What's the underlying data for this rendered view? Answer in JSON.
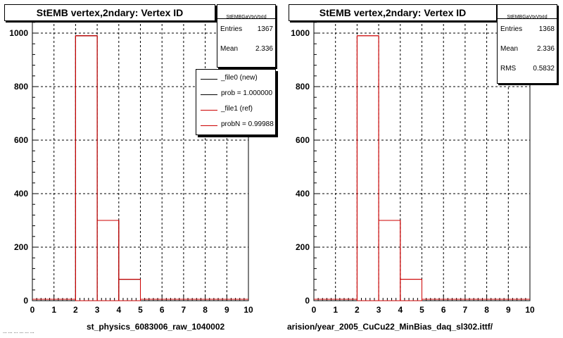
{
  "chart_data": [
    {
      "type": "bar",
      "title": "StEMB  vertex,2ndary: Vertex ID",
      "xlabel": "st_physics_6083006_raw_1040002",
      "xlim": [
        0,
        10
      ],
      "ylim": [
        0,
        1050
      ],
      "xticks": [
        "0",
        "1",
        "2",
        "3",
        "4",
        "5",
        "6",
        "7",
        "8",
        "9",
        "10"
      ],
      "yticks": [
        "0",
        "200",
        "400",
        "600",
        "800",
        "1000"
      ],
      "grid": true,
      "bin_edges": [
        0,
        1,
        2,
        3,
        4,
        5,
        6,
        7,
        8,
        9,
        10
      ],
      "series": [
        {
          "name": "_file0 (new)",
          "color": "#000000",
          "values": [
            0,
            0,
            990,
            300,
            80,
            0,
            0,
            0,
            0,
            0
          ]
        },
        {
          "name": "_file1 (ref)",
          "color": "#cc0000",
          "values": [
            0,
            0,
            990,
            300,
            80,
            0,
            0,
            0,
            0,
            0
          ]
        }
      ],
      "stats": {
        "name": "StEMBGaVtxVtxId",
        "entries_label": "Entries",
        "entries": "1367",
        "mean_label": "Mean",
        "mean": "2.336"
      },
      "legend": {
        "items": [
          "_file0 (new)",
          "prob = 1.000000",
          "_file1 (ref)",
          "probN = 0.99988"
        ],
        "placement": "top-right"
      }
    },
    {
      "type": "bar",
      "title": "StEMB  vertex,2ndary: Vertex ID",
      "xlabel": "arision/year_2005_CuCu22_MinBias_daq_sl302.ittf/",
      "xlim": [
        0,
        10
      ],
      "ylim": [
        0,
        1050
      ],
      "xticks": [
        "0",
        "1",
        "2",
        "3",
        "4",
        "5",
        "6",
        "7",
        "8",
        "9",
        "10"
      ],
      "yticks": [
        "0",
        "200",
        "400",
        "600",
        "800",
        "1000"
      ],
      "grid": true,
      "bin_edges": [
        0,
        1,
        2,
        3,
        4,
        5,
        6,
        7,
        8,
        9,
        10
      ],
      "series": [
        {
          "name": "_file1 (ref)",
          "color": "#cc0000",
          "values": [
            0,
            0,
            990,
            300,
            80,
            0,
            0,
            0,
            0,
            0
          ]
        }
      ],
      "stats": {
        "name": "StEMBGaVtxVtxId",
        "entries_label": "Entries",
        "entries": "1368",
        "mean_label": "Mean",
        "mean": "2.336",
        "rms_label": "RMS",
        "rms": "0.5832"
      }
    }
  ],
  "footer": "... ... ... ... ... ..."
}
